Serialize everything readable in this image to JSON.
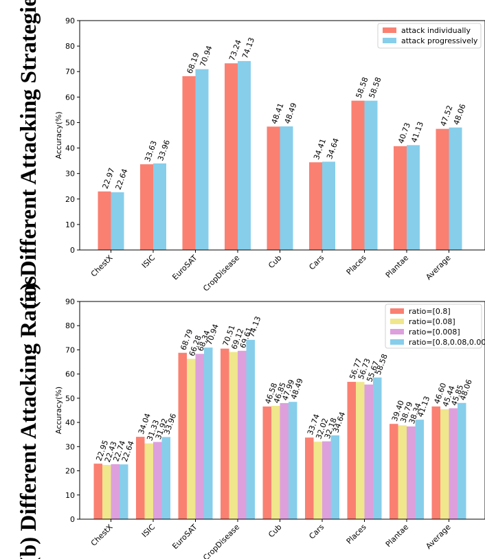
{
  "chart_data": [
    {
      "type": "bar",
      "panel_title": "(a) Different Attacking Strategies",
      "title": "",
      "xlabel": "",
      "ylabel": "Accuracy(%)",
      "ylim": [
        0,
        90
      ],
      "yticks": [
        "0",
        "10",
        "20",
        "30",
        "40",
        "50",
        "60",
        "70",
        "80",
        "90"
      ],
      "legend_position": "top-right",
      "categories": [
        "ChestX",
        "ISIC",
        "EuroSAT",
        "CropDisease",
        "Cub",
        "Cars",
        "Places",
        "Plantae",
        "Average"
      ],
      "series": [
        {
          "name": "attack individually",
          "color": "#fa8072",
          "values": [
            22.97,
            33.63,
            68.19,
            73.24,
            48.41,
            34.41,
            58.58,
            40.73,
            47.52
          ],
          "labels": [
            "22.97",
            "33.63",
            "68.19",
            "73.24",
            "48.41",
            "34.41",
            "58.58",
            "40.73",
            "47.52"
          ]
        },
        {
          "name": "attack progressively",
          "color": "#87ceeb",
          "values": [
            22.64,
            33.96,
            70.94,
            74.13,
            48.49,
            34.64,
            58.58,
            41.13,
            48.06
          ],
          "labels": [
            "22.64",
            "33.96",
            "70.94",
            "74.13",
            "48.49",
            "34.64",
            "58.58",
            "41.13",
            "48.06"
          ]
        }
      ]
    },
    {
      "type": "bar",
      "panel_title": "(b) Different Attacking Ratios",
      "title": "",
      "xlabel": "",
      "ylabel": "Accuracy(%)",
      "ylim": [
        0,
        90
      ],
      "yticks": [
        "0",
        "10",
        "20",
        "30",
        "40",
        "50",
        "60",
        "70",
        "80",
        "90"
      ],
      "legend_position": "top-right",
      "categories": [
        "ChestX",
        "ISIC",
        "EuroSAT",
        "CropDisease",
        "Cub",
        "Cars",
        "Places",
        "Plantae",
        "Average"
      ],
      "series": [
        {
          "name": "ratio=[0.8]",
          "color": "#fa8072",
          "values": [
            22.95,
            34.04,
            68.79,
            70.51,
            46.58,
            33.74,
            56.77,
            39.4,
            46.6
          ],
          "labels": [
            "22.95",
            "34.04",
            "68.79",
            "70.51",
            "46.58",
            "33.74",
            "56.77",
            "39.40",
            "46.60"
          ]
        },
        {
          "name": "ratio=[0.08]",
          "color": "#f0e68c",
          "values": [
            22.43,
            31.33,
            66.28,
            69.12,
            46.85,
            32.02,
            56.73,
            38.79,
            45.44
          ],
          "labels": [
            "22.43",
            "31.33",
            "66.28",
            "69.12",
            "46.85",
            "32.02",
            "56.73",
            "38.79",
            "45.44"
          ]
        },
        {
          "name": "ratio=[0.008]",
          "color": "#dda0dd",
          "values": [
            22.74,
            31.92,
            68.34,
            69.61,
            47.99,
            32.18,
            55.67,
            38.34,
            45.85
          ],
          "labels": [
            "22.74",
            "31.92",
            "68.34",
            "69.61",
            "47.99",
            "32.18",
            "55.67",
            "38.34",
            "45.85"
          ]
        },
        {
          "name": "ratio=[0.8,0.08,0.008]",
          "color": "#87ceeb",
          "values": [
            22.64,
            33.96,
            70.94,
            74.13,
            48.49,
            34.64,
            58.58,
            41.13,
            48.06
          ],
          "labels": [
            "22.64",
            "33.96",
            "70.94",
            "74.13",
            "48.49",
            "34.64",
            "58.58",
            "41.13",
            "48.06"
          ]
        }
      ]
    }
  ]
}
